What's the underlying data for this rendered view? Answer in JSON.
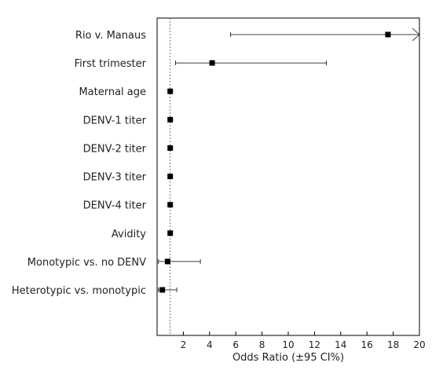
{
  "chart_data": {
    "type": "forest",
    "title": "",
    "xlabel": "Odds Ratio (±95 CI%)",
    "ylabel": "",
    "xlim": [
      0,
      20
    ],
    "x_ticks": [
      2,
      4,
      6,
      8,
      10,
      12,
      14,
      16,
      18,
      20
    ],
    "reference_line": 1,
    "grid": false,
    "marker_color": "#000000",
    "rows": [
      {
        "label": "Rio v. Manaus",
        "or": 17.6,
        "lower": 5.6,
        "upper": 20,
        "upper_truncated": true
      },
      {
        "label": "First trimester",
        "or": 4.2,
        "lower": 1.4,
        "upper": 12.9,
        "upper_truncated": false
      },
      {
        "label": "Maternal age",
        "or": 1.0,
        "lower": 0.95,
        "upper": 1.05,
        "upper_truncated": false
      },
      {
        "label": "DENV-1 titer",
        "or": 1.0,
        "lower": 0.95,
        "upper": 1.05,
        "upper_truncated": false
      },
      {
        "label": "DENV-2 titer",
        "or": 1.0,
        "lower": 0.95,
        "upper": 1.05,
        "upper_truncated": false
      },
      {
        "label": "DENV-3 titer",
        "or": 1.0,
        "lower": 0.95,
        "upper": 1.05,
        "upper_truncated": false
      },
      {
        "label": "DENV-4 titer",
        "or": 1.0,
        "lower": 0.95,
        "upper": 1.05,
        "upper_truncated": false
      },
      {
        "label": "Avidity",
        "or": 1.0,
        "lower": 0.95,
        "upper": 1.05,
        "upper_truncated": false
      },
      {
        "label": "Monotypic vs. no DENV",
        "or": 0.8,
        "lower": 0.1,
        "upper": 3.3,
        "upper_truncated": false
      },
      {
        "label": "Heterotypic vs. monotypic",
        "or": 0.4,
        "lower": 0.1,
        "upper": 1.5,
        "upper_truncated": false
      }
    ]
  }
}
